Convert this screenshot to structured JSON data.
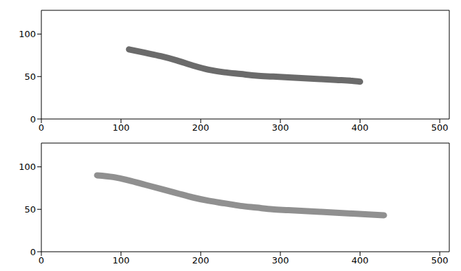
{
  "chart_data": [
    {
      "type": "line",
      "x": [
        110,
        130,
        150,
        170,
        190,
        210,
        230,
        250,
        270,
        290,
        310,
        330,
        350,
        370,
        390,
        400
      ],
      "values": [
        82,
        78,
        74,
        69,
        63,
        58,
        55,
        53,
        51,
        50,
        49,
        48,
        47,
        46,
        45,
        44
      ],
      "color": "#3a3a3a",
      "xlim": [
        0,
        512
      ],
      "xticks": [
        0,
        100,
        200,
        300,
        400,
        500
      ],
      "ylim": [
        0,
        128
      ],
      "yticks": [
        0,
        50,
        100
      ]
    },
    {
      "type": "line",
      "x": [
        70,
        90,
        110,
        130,
        150,
        170,
        190,
        210,
        230,
        250,
        270,
        290,
        310,
        330,
        350,
        370,
        390,
        410,
        430
      ],
      "values": [
        90,
        88,
        84,
        79,
        74,
        69,
        64,
        60,
        57,
        54,
        52,
        50,
        49,
        48,
        47,
        46,
        45,
        44,
        43
      ],
      "color": "#6b6b6b",
      "xlim": [
        0,
        512
      ],
      "xticks": [
        0,
        100,
        200,
        300,
        400,
        500
      ],
      "ylim": [
        0,
        128
      ],
      "yticks": [
        0,
        50,
        100
      ]
    }
  ]
}
